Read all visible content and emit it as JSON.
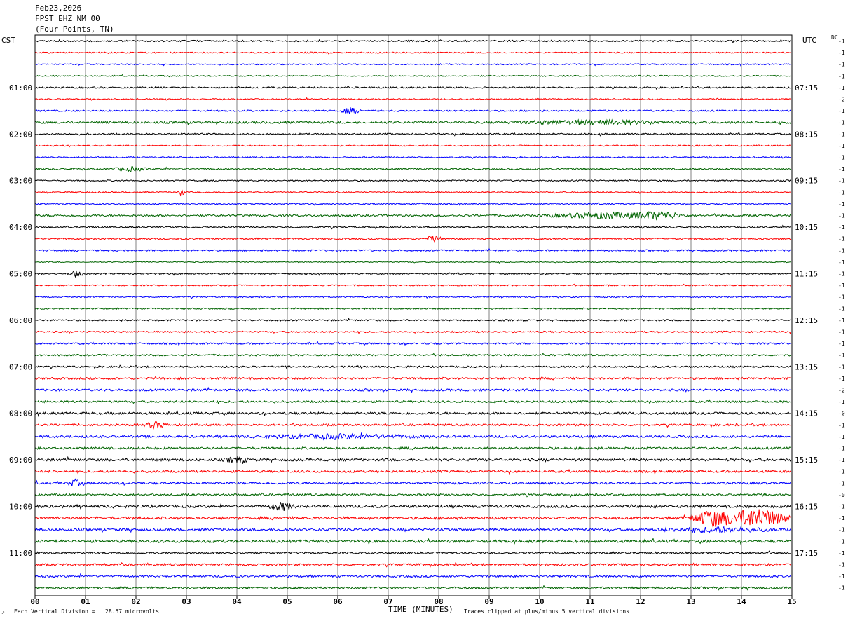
{
  "header": {
    "date": "Feb23,2026",
    "station": "FPST EHZ NM 00",
    "location": "(Four Points, TN)"
  },
  "left_timezone": "CST",
  "right_timezone": "UTC",
  "dc_label": "DC",
  "footer": {
    "scale_note": "Each Vertical Division =   28.57 microvolts",
    "xlabel": "TIME (MINUTES)",
    "clip_note": "Traces clipped at plus/minus 5 vertical divisions",
    "corner_mark": "↗"
  },
  "colors": {
    "trace_cycle": [
      "#000000",
      "#ff0000",
      "#0000ff",
      "#006400"
    ],
    "grid": "#808080",
    "frame": "#000000"
  },
  "chart_data": {
    "type": "line",
    "title": "FPST EHZ NM 00",
    "xlabel": "TIME (MINUTES)",
    "ylabel": "",
    "xlim": [
      0,
      15
    ],
    "x_ticks": [
      "00",
      "01",
      "02",
      "03",
      "04",
      "05",
      "06",
      "07",
      "08",
      "09",
      "10",
      "11",
      "12",
      "13",
      "14",
      "15"
    ],
    "rows_count": 48,
    "minutes_per_row": 15,
    "left_hour_labels": [
      {
        "row": 4,
        "text": "01:00"
      },
      {
        "row": 8,
        "text": "02:00"
      },
      {
        "row": 12,
        "text": "03:00"
      },
      {
        "row": 16,
        "text": "04:00"
      },
      {
        "row": 20,
        "text": "05:00"
      },
      {
        "row": 24,
        "text": "06:00"
      },
      {
        "row": 28,
        "text": "07:00"
      },
      {
        "row": 32,
        "text": "08:00"
      },
      {
        "row": 36,
        "text": "09:00"
      },
      {
        "row": 40,
        "text": "10:00"
      },
      {
        "row": 44,
        "text": "11:00"
      }
    ],
    "right_hour_labels": [
      {
        "row": 4,
        "text": "07:15"
      },
      {
        "row": 8,
        "text": "08:15"
      },
      {
        "row": 12,
        "text": "09:15"
      },
      {
        "row": 16,
        "text": "10:15"
      },
      {
        "row": 20,
        "text": "11:15"
      },
      {
        "row": 24,
        "text": "12:15"
      },
      {
        "row": 28,
        "text": "13:15"
      },
      {
        "row": 32,
        "text": "14:15"
      },
      {
        "row": 36,
        "text": "15:15"
      },
      {
        "row": 40,
        "text": "16:15"
      },
      {
        "row": 44,
        "text": "17:15"
      }
    ],
    "dc_offsets": [
      "-1",
      "-1",
      "-1",
      "-1",
      "-1",
      "-2",
      "-1",
      "-1",
      "-1",
      "-1",
      "-1",
      "-1",
      "-1",
      "-1",
      "-1",
      "-1",
      "-1",
      "-1",
      "-1",
      "-1",
      "-1",
      "-1",
      "-1",
      "-1",
      "-1",
      "-1",
      "-1",
      "-1",
      "-1",
      "-1",
      "-2",
      "-1",
      "-0",
      "-1",
      "-1",
      "-1",
      "-1",
      "-1",
      "-1",
      "-0",
      "-1",
      "-1",
      "-1",
      "-1",
      "-1",
      "-1",
      "-1",
      "-1"
    ],
    "trace_activity": [
      1.0,
      0.8,
      0.8,
      0.8,
      1.0,
      0.8,
      1.0,
      1.4,
      1.0,
      0.8,
      0.8,
      1.0,
      0.8,
      0.8,
      0.8,
      1.2,
      1.0,
      1.0,
      1.0,
      0.6,
      0.9,
      0.8,
      0.8,
      0.9,
      1.0,
      1.0,
      1.1,
      1.1,
      1.1,
      1.3,
      1.4,
      1.3,
      1.5,
      1.3,
      1.5,
      1.4,
      1.6,
      1.4,
      1.4,
      1.2,
      1.7,
      1.6,
      1.6,
      1.7,
      1.3,
      1.3,
      1.3,
      1.3
    ],
    "events": [
      {
        "row": 6,
        "minute": 6.25,
        "amp": 3.0,
        "dur": 0.25
      },
      {
        "row": 7,
        "minute": 11.0,
        "amp": 2.0,
        "dur": 2.0
      },
      {
        "row": 11,
        "minute": 1.9,
        "amp": 2.0,
        "dur": 0.4
      },
      {
        "row": 13,
        "minute": 2.9,
        "amp": 3.0,
        "dur": 0.1
      },
      {
        "row": 15,
        "minute": 11.3,
        "amp": 3.0,
        "dur": 1.5
      },
      {
        "row": 15,
        "minute": 12.4,
        "amp": 3.5,
        "dur": 0.6
      },
      {
        "row": 17,
        "minute": 7.9,
        "amp": 3.0,
        "dur": 0.2
      },
      {
        "row": 20,
        "minute": 0.8,
        "amp": 3.0,
        "dur": 0.2
      },
      {
        "row": 33,
        "minute": 2.4,
        "amp": 3.0,
        "dur": 0.3
      },
      {
        "row": 34,
        "minute": 6.0,
        "amp": 2.0,
        "dur": 2.0
      },
      {
        "row": 36,
        "minute": 4.0,
        "amp": 3.0,
        "dur": 0.3
      },
      {
        "row": 38,
        "minute": 0.8,
        "amp": 3.0,
        "dur": 0.2
      },
      {
        "row": 40,
        "minute": 4.9,
        "amp": 4.0,
        "dur": 0.3
      },
      {
        "row": 41,
        "minute": 13.4,
        "amp": 9.0,
        "dur": 0.5
      },
      {
        "row": 41,
        "minute": 14.3,
        "amp": 10.0,
        "dur": 0.8
      },
      {
        "row": 42,
        "minute": 13.5,
        "amp": 2.0,
        "dur": 1.5
      }
    ]
  }
}
